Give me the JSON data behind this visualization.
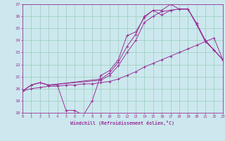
{
  "xlabel": "Windchill (Refroidissement éolien,°C)",
  "bg_color": "#cce8ee",
  "line_color": "#993399",
  "grid_color": "#99ccbb",
  "xmin": 0,
  "xmax": 23,
  "ymin": 18,
  "ymax": 27,
  "series": [
    {
      "x": [
        0,
        1,
        2,
        3,
        4,
        5,
        6,
        7,
        8,
        9,
        10,
        11,
        12,
        13,
        14,
        15,
        16,
        17,
        18,
        19,
        20,
        21,
        22,
        23
      ],
      "y": [
        19.8,
        20.3,
        20.5,
        20.3,
        20.3,
        18.2,
        18.2,
        17.8,
        19.0,
        21.1,
        21.5,
        22.4,
        24.4,
        24.7,
        25.9,
        26.5,
        26.1,
        26.5,
        26.6,
        26.6,
        25.3,
        23.9,
        23.2,
        22.4
      ]
    },
    {
      "x": [
        0,
        1,
        2,
        3,
        4,
        5,
        6,
        7,
        8,
        9,
        10,
        11,
        12,
        13,
        14,
        15,
        16,
        17,
        18,
        19,
        20,
        21,
        22,
        23
      ],
      "y": [
        19.8,
        20.0,
        20.1,
        20.2,
        20.2,
        20.3,
        20.3,
        20.4,
        20.4,
        20.5,
        20.6,
        20.8,
        21.1,
        21.4,
        21.8,
        22.1,
        22.4,
        22.7,
        23.0,
        23.3,
        23.6,
        23.9,
        24.2,
        22.4
      ]
    },
    {
      "x": [
        0,
        1,
        2,
        3,
        9,
        10,
        11,
        12,
        13,
        14,
        15,
        16,
        17,
        18,
        19,
        20,
        21,
        22,
        23
      ],
      "y": [
        19.8,
        20.3,
        20.5,
        20.3,
        20.8,
        21.3,
        22.2,
        23.5,
        24.5,
        26.0,
        26.5,
        26.5,
        27.0,
        26.6,
        26.6,
        25.4,
        24.0,
        23.2,
        22.4
      ]
    },
    {
      "x": [
        0,
        1,
        2,
        3,
        9,
        10,
        11,
        12,
        13,
        14,
        15,
        16,
        17,
        18,
        19,
        20,
        21,
        22,
        23
      ],
      "y": [
        19.8,
        20.3,
        20.5,
        20.3,
        20.7,
        21.1,
        21.9,
        23.0,
        24.0,
        25.5,
        26.0,
        26.4,
        26.5,
        26.6,
        26.6,
        25.4,
        24.0,
        23.2,
        22.4
      ]
    }
  ]
}
